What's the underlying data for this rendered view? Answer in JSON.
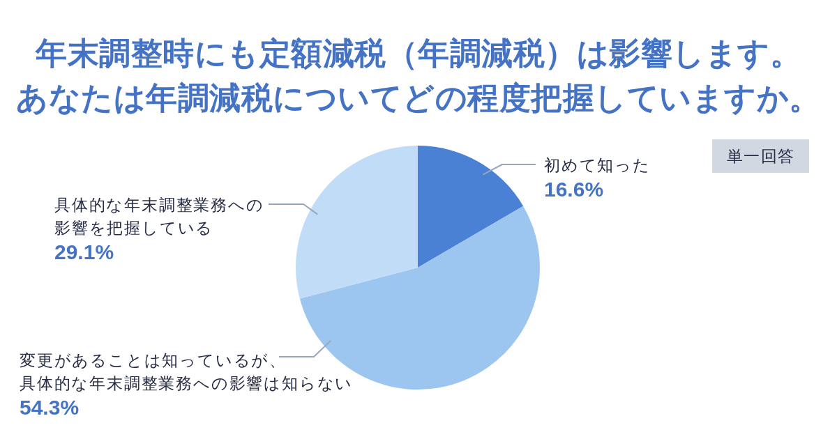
{
  "chart_data": {
    "type": "pie",
    "title": "年末調整時にも定額減税（年調減税）は影響します。あなたは年調減税についてどの程度把握していますか。",
    "categories": [
      "初めて知った",
      "変更があることは知っているが、具体的な年末調整業務への影響は知らない",
      "具体的な年末調整業務への影響を把握している"
    ],
    "values": [
      16.6,
      54.3,
      29.1
    ],
    "colors": [
      "#4a81d4",
      "#9cc6ef",
      "#c1dcf6"
    ],
    "value_labels": [
      "16.6%",
      "54.3%",
      "29.1%"
    ],
    "annotations": [
      "単一回答"
    ]
  }
}
